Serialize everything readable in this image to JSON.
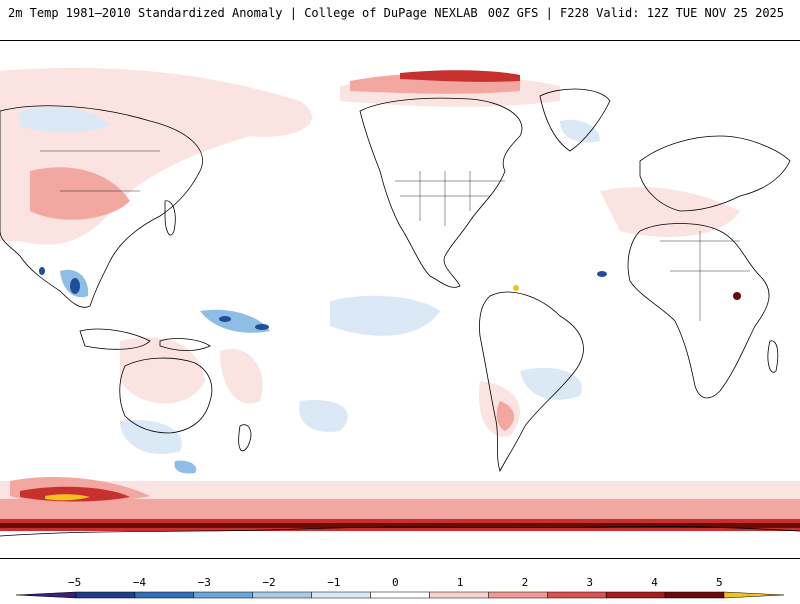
{
  "header": {
    "left_title": "2m Temp 1981–2010 Standardized Anomaly | College of DuPage NEXLAB",
    "right_title": "00Z GFS | F228 Valid: 12Z TUE NOV 25 2025"
  },
  "legend": {
    "ticks": [
      "−5",
      "−4",
      "−3",
      "−2",
      "−1",
      "0",
      "1",
      "2",
      "3",
      "4",
      "5"
    ],
    "colors": [
      "#3b1f7a",
      "#1f3f8a",
      "#2f6fb8",
      "#6aa6d8",
      "#a9cbea",
      "#d9e8f6",
      "#ffffff",
      "#f8d0cc",
      "#ee9c95",
      "#d9524d",
      "#a61c1c",
      "#6a0a0a",
      "#f5c21a"
    ]
  },
  "colors": {
    "warm_light": "#fbe3e1",
    "warm_mid": "#f2a7a1",
    "warm_dark": "#c8302d",
    "cold_light": "#dbe9f7",
    "cold_mid": "#8ebde6",
    "cold_dark": "#1d4f9a",
    "land_outline": "#000000"
  }
}
